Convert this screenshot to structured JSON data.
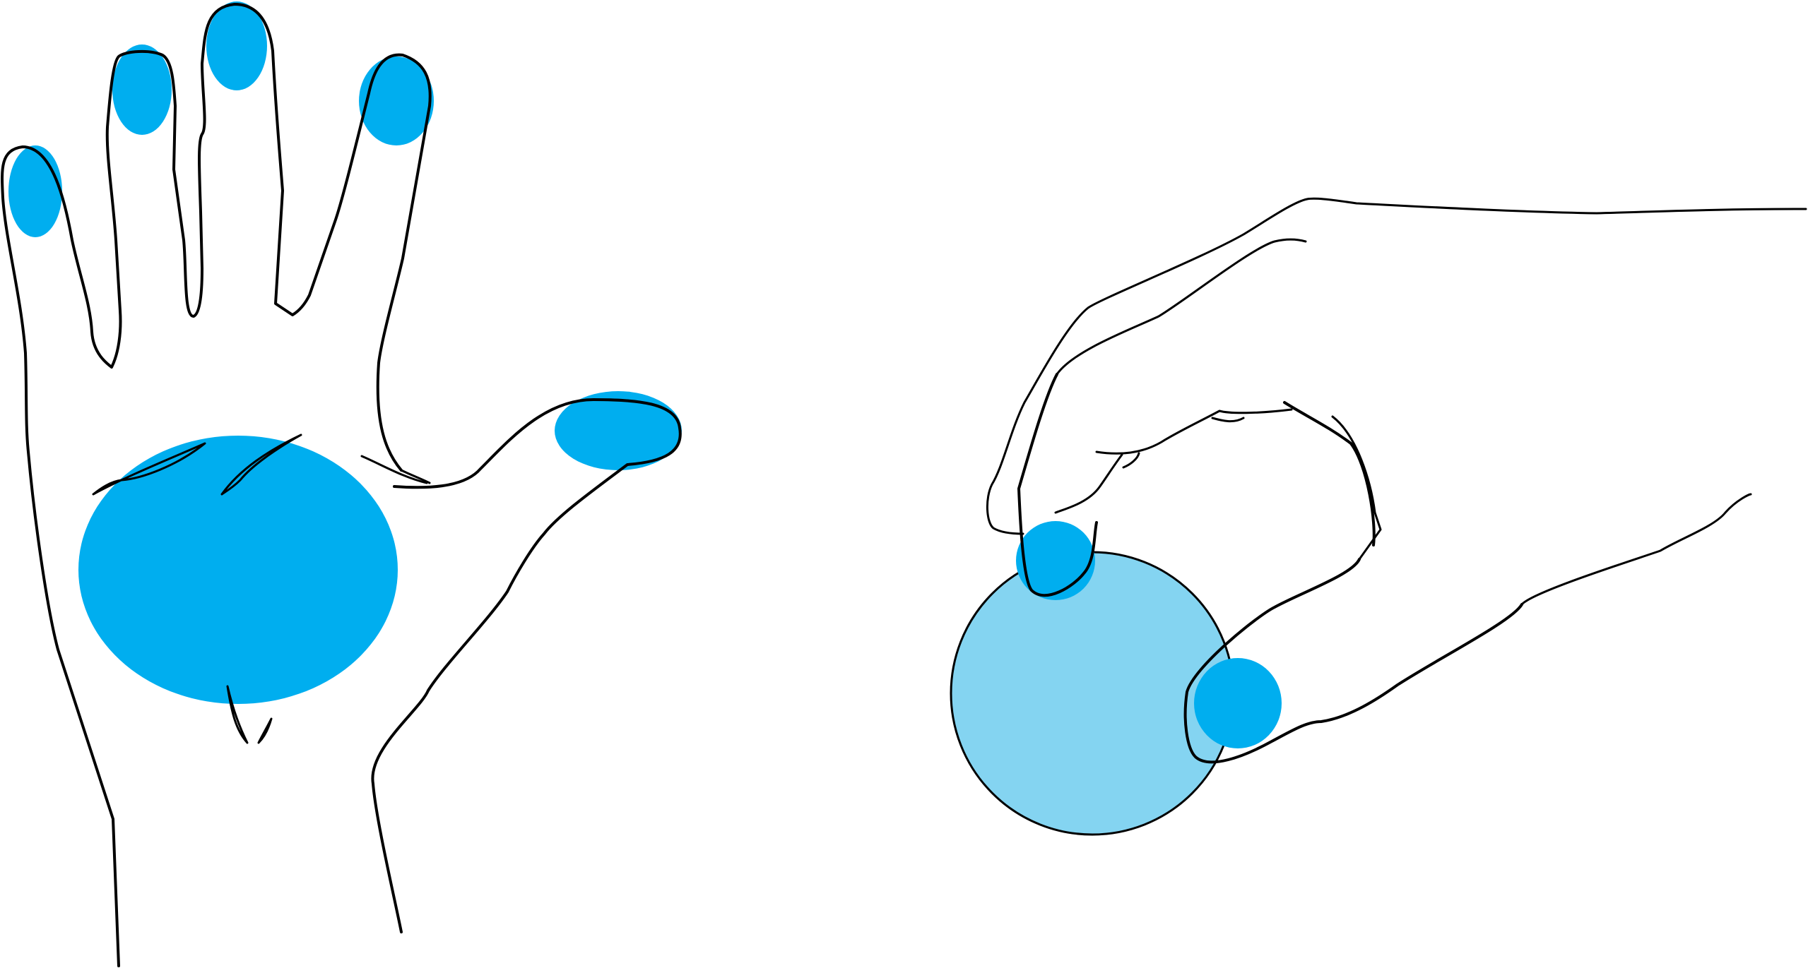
{
  "figure": {
    "background": "#ffffff",
    "outline_color": "#000000",
    "contact_color": "#00aeef",
    "object_color": "#84d4f1",
    "panels": [
      {
        "id": "open-hand",
        "depicts": "open-palm-hand-icon",
        "highlighted_regions": [
          "thumb-tip",
          "index-tip",
          "middle-tip",
          "ring-tip",
          "little-tip",
          "palm"
        ]
      },
      {
        "id": "pinch-grip",
        "depicts": "hand-holding-ball-icon",
        "highlighted_regions": [
          "thumb-tip",
          "index-tip",
          "ball"
        ]
      }
    ]
  }
}
